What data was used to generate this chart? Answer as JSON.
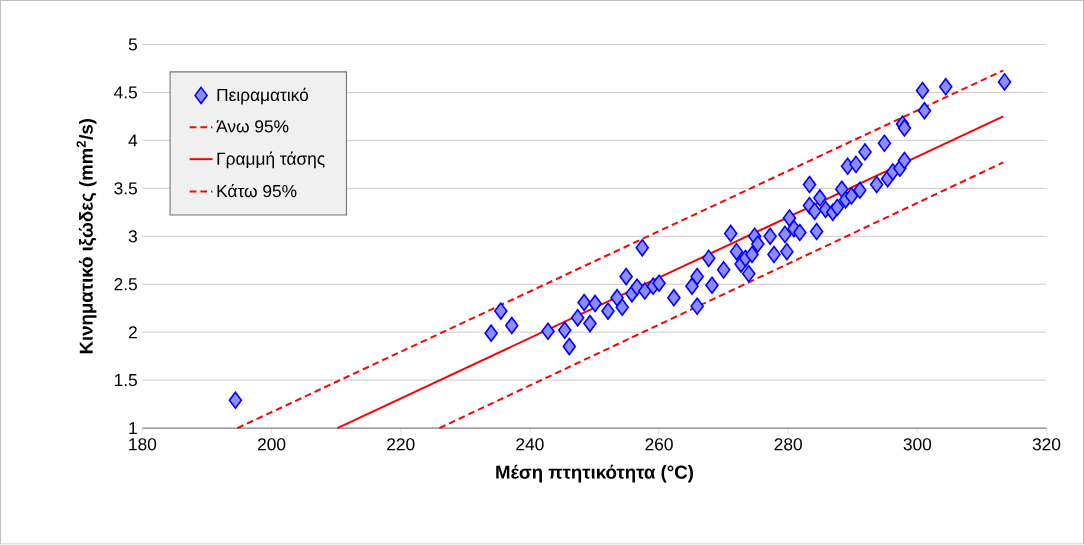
{
  "chart_data": {
    "type": "scatter",
    "xlabel": "Μέση πτητικότητα (°C)",
    "ylabel": "Κινηματικό ιξώδες (mm$^{2}$/s)",
    "xlim": [
      180,
      320
    ],
    "xticks": [
      180,
      200,
      220,
      240,
      260,
      280,
      300,
      320
    ],
    "ylim": [
      1,
      5
    ],
    "yticks": [
      1,
      1.5,
      2,
      2.5,
      3,
      3.5,
      4,
      4.5,
      5
    ],
    "grid": "y",
    "legend": "top left",
    "series": [
      {
        "name": "Πειραματικό",
        "marker": "diamond",
        "color": "#0000ff",
        "x": [
          194.4,
          234.0,
          235.5,
          237.2,
          242.8,
          245.4,
          246.1,
          247.4,
          248.4,
          249.3,
          250.1,
          252.1,
          253.5,
          254.3,
          254.9,
          255.8,
          256.6,
          257.4,
          257.8,
          259.1,
          260.0,
          262.3,
          265.1,
          265.9,
          265.9,
          267.7,
          268.2,
          270.0,
          271.1,
          272.0,
          272.7,
          273.4,
          273.9,
          274.4,
          274.8,
          275.3,
          277.2,
          277.8,
          279.5,
          279.8,
          280.2,
          280.9,
          281.8,
          283.3,
          283.3,
          284.1,
          284.4,
          284.9,
          285.8,
          286.9,
          287.6,
          288.3,
          288.9,
          289.2,
          289.8,
          290.5,
          291.1,
          291.9,
          293.7,
          294.9,
          295.4,
          296.2,
          297.3,
          297.7,
          298.0,
          298.0,
          300.8,
          301.1,
          304.4,
          313.5
        ],
        "values": [
          1.29,
          1.99,
          2.22,
          2.07,
          2.01,
          2.02,
          1.85,
          2.15,
          2.31,
          2.09,
          2.3,
          2.22,
          2.36,
          2.26,
          2.58,
          2.4,
          2.47,
          2.88,
          2.43,
          2.48,
          2.51,
          2.36,
          2.48,
          2.27,
          2.58,
          2.77,
          2.49,
          2.65,
          3.03,
          2.84,
          2.71,
          2.77,
          2.61,
          2.81,
          3.0,
          2.92,
          3.0,
          2.81,
          3.02,
          2.84,
          3.19,
          3.08,
          3.04,
          3.32,
          3.54,
          3.26,
          3.05,
          3.4,
          3.28,
          3.25,
          3.3,
          3.49,
          3.38,
          3.73,
          3.42,
          3.75,
          3.48,
          3.88,
          3.54,
          3.97,
          3.6,
          3.67,
          3.71,
          4.17,
          3.79,
          4.13,
          4.52,
          4.31,
          4.56,
          4.61
        ]
      },
      {
        "name": "Άνω 95%",
        "type": "line",
        "line_style": "dashed",
        "marker": "none",
        "color": "#ff0000",
        "x": [
          194.7,
          313.3
        ],
        "values": [
          1.0,
          4.73
        ]
      },
      {
        "name": "Γραμμή τάσης",
        "type": "line",
        "line_style": "solid",
        "marker": "none",
        "color": "#ff0000",
        "x": [
          210.2,
          313.3
        ],
        "values": [
          1.0,
          4.25
        ]
      },
      {
        "name": "Κάτω 95%",
        "type": "line",
        "line_style": "dashed",
        "marker": "none",
        "color": "#ff0000",
        "x": [
          226.0,
          313.3
        ],
        "values": [
          1.0,
          3.77
        ]
      }
    ]
  }
}
